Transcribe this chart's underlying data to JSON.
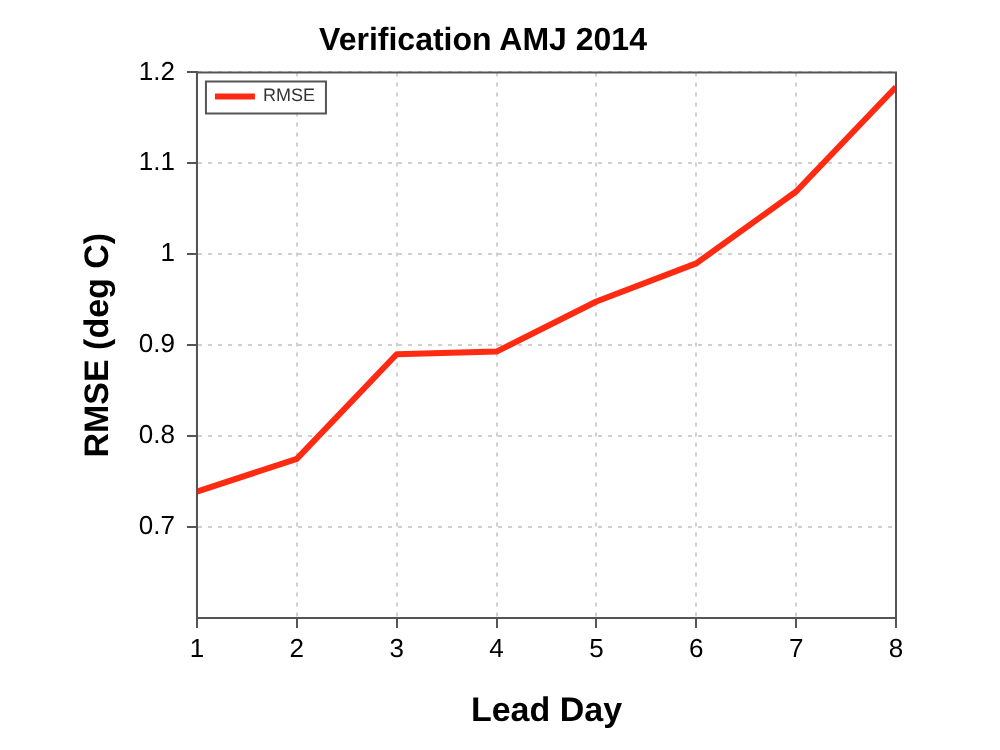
{
  "chart_data": {
    "type": "line",
    "title": "Verification AMJ 2014",
    "xlabel": "Lead Day",
    "ylabel": "RMSE (deg C)",
    "x": [
      1,
      2,
      3,
      4,
      5,
      6,
      7,
      8
    ],
    "series": [
      {
        "name": "RMSE",
        "color": "#ff2a12",
        "values": [
          0.739,
          0.775,
          0.89,
          0.893,
          0.948,
          0.99,
          1.069,
          1.184
        ]
      }
    ],
    "xlim": [
      1,
      8
    ],
    "xticks": [
      1,
      2,
      3,
      4,
      5,
      6,
      7,
      8
    ],
    "ylim": [
      0.6,
      1.2
    ],
    "yticks": [
      0.7,
      0.8,
      0.9,
      1,
      1.1,
      1.2
    ],
    "grid": true,
    "legend": "top left",
    "marker": "none",
    "line_style": "solid"
  }
}
